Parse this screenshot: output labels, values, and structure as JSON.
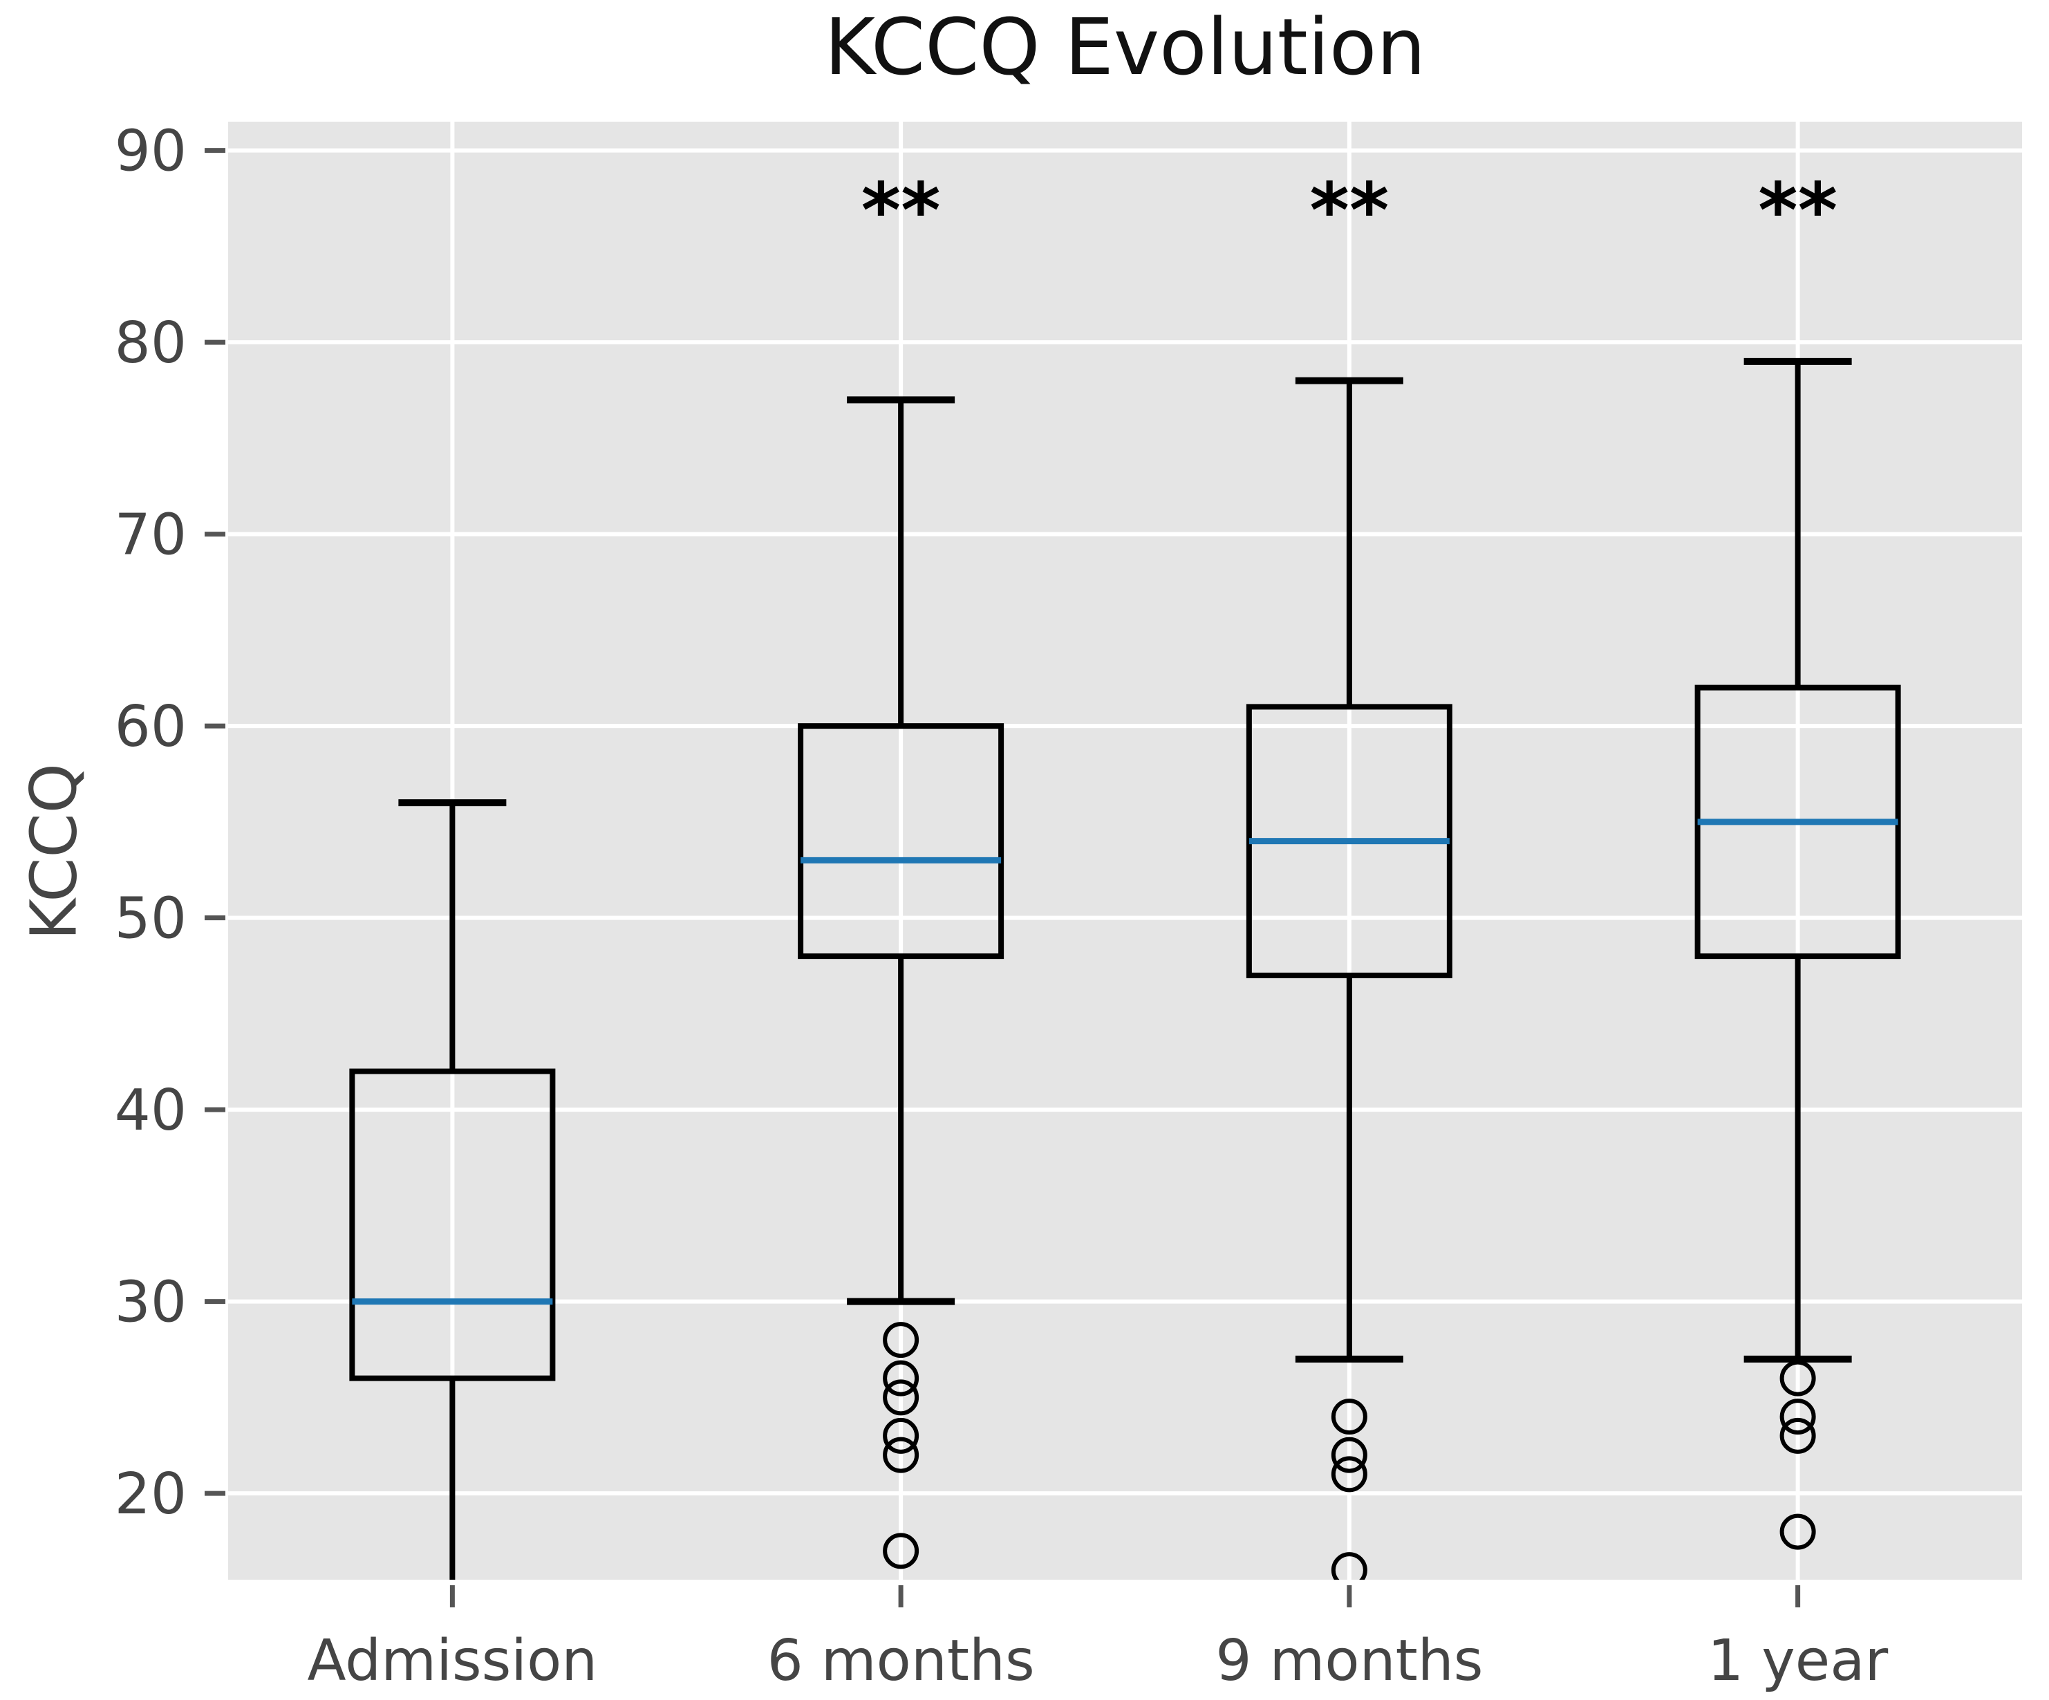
{
  "chart_data": {
    "type": "box",
    "title": "KCCQ Evolution",
    "ylabel": "KCCQ",
    "categories": [
      "Admission",
      "6 months",
      "9 months",
      "1 year"
    ],
    "yticks": [
      20,
      30,
      40,
      50,
      60,
      70,
      80,
      90
    ],
    "ylim": [
      15.5,
      91.5
    ],
    "grid": true,
    "legend": "none",
    "significance_marker": "**",
    "significance_y": 85.5,
    "boxes": [
      {
        "label": "Admission",
        "whisker_high": 56,
        "q3": 42,
        "median": 30,
        "q1": 26,
        "whisker_low": null,
        "whisker_low_clipped": true,
        "outliers": [],
        "significance": ""
      },
      {
        "label": "6 months",
        "whisker_high": 77,
        "q3": 60,
        "median": 53,
        "q1": 48,
        "whisker_low": 30,
        "whisker_low_clipped": false,
        "outliers": [
          28,
          26,
          25,
          23,
          22,
          17
        ],
        "significance": "**"
      },
      {
        "label": "9 months",
        "whisker_high": 78,
        "q3": 61,
        "median": 54,
        "q1": 47,
        "whisker_low": 27,
        "whisker_low_clipped": false,
        "outliers": [
          24,
          22,
          21,
          16
        ],
        "significance": "**"
      },
      {
        "label": "1 year",
        "whisker_high": 79,
        "q3": 62,
        "median": 55,
        "q1": 48,
        "whisker_low": 27,
        "whisker_low_clipped": false,
        "outliers": [
          26,
          24,
          23,
          18
        ],
        "significance": "**"
      }
    ],
    "colors": {
      "plot_bg": "#e5e5e5",
      "grid": "#ffffff",
      "box_stroke": "#000000",
      "median": "#1f77b4",
      "tick_text": "#454545",
      "title_text": "#111111"
    }
  }
}
